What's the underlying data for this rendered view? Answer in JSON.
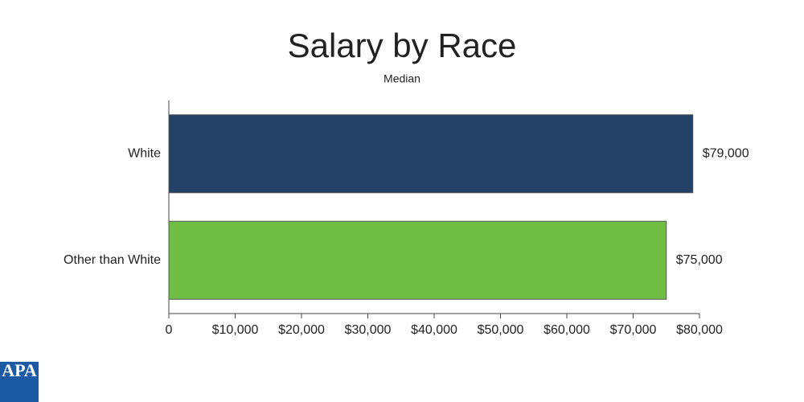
{
  "chart_data": {
    "type": "bar",
    "orientation": "horizontal",
    "title": "Salary by Race",
    "subtitle": "Median",
    "categories": [
      "White",
      "Other than White"
    ],
    "values": [
      79000,
      75000
    ],
    "value_labels": [
      "$79,000",
      "$75,000"
    ],
    "colors": [
      "#234266",
      "#70bf44"
    ],
    "xlim": [
      0,
      80000
    ],
    "xticks": [
      0,
      {
        "value": 10000,
        "label": "$10,000"
      },
      {
        "value": 20000,
        "label": "$20,000"
      },
      {
        "value": 30000,
        "label": "$30,000"
      },
      {
        "value": 40000,
        "label": "$40,000"
      },
      {
        "value": 50000,
        "label": "$50,000"
      },
      {
        "value": 60000,
        "label": "$60,000"
      },
      {
        "value": 70000,
        "label": "$70,000"
      },
      {
        "value": 80000,
        "label": "$80,000"
      }
    ],
    "grid": false
  },
  "branding": {
    "logo": "APA"
  }
}
